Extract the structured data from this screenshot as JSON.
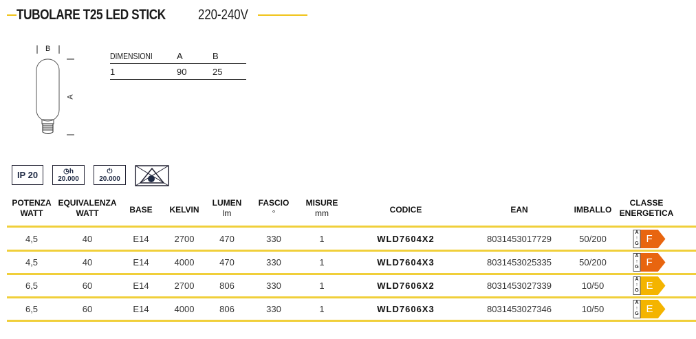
{
  "title": {
    "bold": "TUBOLARE T25 LED STICK",
    "light": "220-240V"
  },
  "drawing": {
    "label_b": "B",
    "label_a": "A"
  },
  "dimensions": {
    "headers": [
      "DIMENSIONI",
      "A",
      "B"
    ],
    "rows": [
      [
        "1",
        "90",
        "25"
      ]
    ]
  },
  "icons": [
    {
      "name": "ip-rating",
      "text": "IP 20"
    },
    {
      "name": "lifetime-hours",
      "icon": "clock-icon",
      "sub": "h",
      "text": "20.000"
    },
    {
      "name": "switching-cycles",
      "icon": "power-icon",
      "text": "20.000"
    },
    {
      "name": "no-direct-view",
      "icon": "eye-crossed-icon"
    }
  ],
  "table": {
    "headers": [
      [
        "POTENZA",
        "WATT"
      ],
      [
        "EQUIVALENZA",
        "WATT"
      ],
      [
        "BASE",
        ""
      ],
      [
        "KELVIN",
        ""
      ],
      [
        "LUMEN",
        "lm"
      ],
      [
        "FASCIO",
        "°"
      ],
      [
        "MISURE",
        "mm"
      ],
      [
        "CODICE",
        ""
      ],
      [
        "EAN",
        ""
      ],
      [
        "IMBALLO",
        ""
      ],
      [
        "CLASSE",
        "ENERGETICA"
      ]
    ],
    "rows": [
      [
        "4,5",
        "40",
        "E14",
        "2700",
        "470",
        "330",
        "1",
        "WLD7604X2",
        "8031453017729",
        "50/200",
        "F"
      ],
      [
        "4,5",
        "40",
        "E14",
        "4000",
        "470",
        "330",
        "1",
        "WLD7604X3",
        "8031453025335",
        "50/200",
        "F"
      ],
      [
        "6,5",
        "60",
        "E14",
        "2700",
        "806",
        "330",
        "1",
        "WLD7606X2",
        "8031453027339",
        "10/50",
        "E"
      ],
      [
        "6,5",
        "60",
        "E14",
        "4000",
        "806",
        "330",
        "1",
        "WLD7606X3",
        "8031453027346",
        "10/50",
        "E"
      ]
    ],
    "energy_scale": {
      "top": "A",
      "bottom": "G"
    },
    "energy_colors": {
      "F": "#e8650f",
      "E": "#f4b400"
    },
    "accent": "#f0cf3a"
  }
}
